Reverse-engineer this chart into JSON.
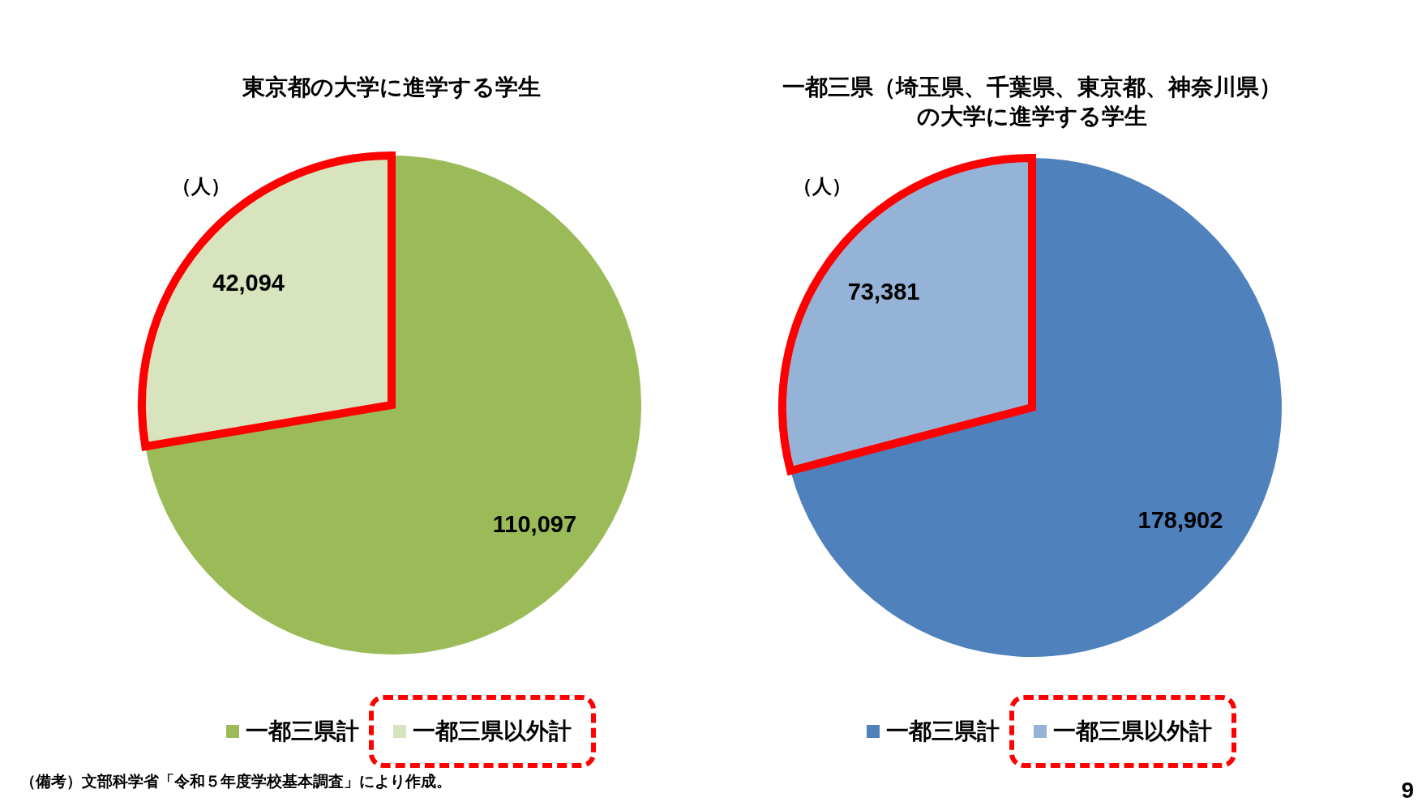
{
  "chart_data": [
    {
      "type": "pie",
      "title": "東京都の大学に進学する学生",
      "categories": [
        "一都三県計",
        "一都三県以外計"
      ],
      "values": [
        110097,
        42094
      ],
      "value_labels": [
        "110,097",
        "42,094"
      ],
      "colors": [
        "#9bbb59",
        "#d7e4bd"
      ],
      "legend": "bottom",
      "annotations": [
        "（人）",
        "（備考）文部科学省「令和５年度学校基本調査」により作成。"
      ]
    },
    {
      "type": "pie",
      "title": "一都三県（埼玉県、千葉県、東京都、神奈川県）の大学に進学する学生",
      "categories": [
        "一都三県計",
        "一都三県以外計"
      ],
      "values": [
        178902,
        73381
      ],
      "value_labels": [
        "178,902",
        "73,381"
      ],
      "colors": [
        "#4f81bd",
        "#95b3d7"
      ],
      "legend": "bottom",
      "annotations": [
        "（人）",
        "9"
      ]
    }
  ]
}
